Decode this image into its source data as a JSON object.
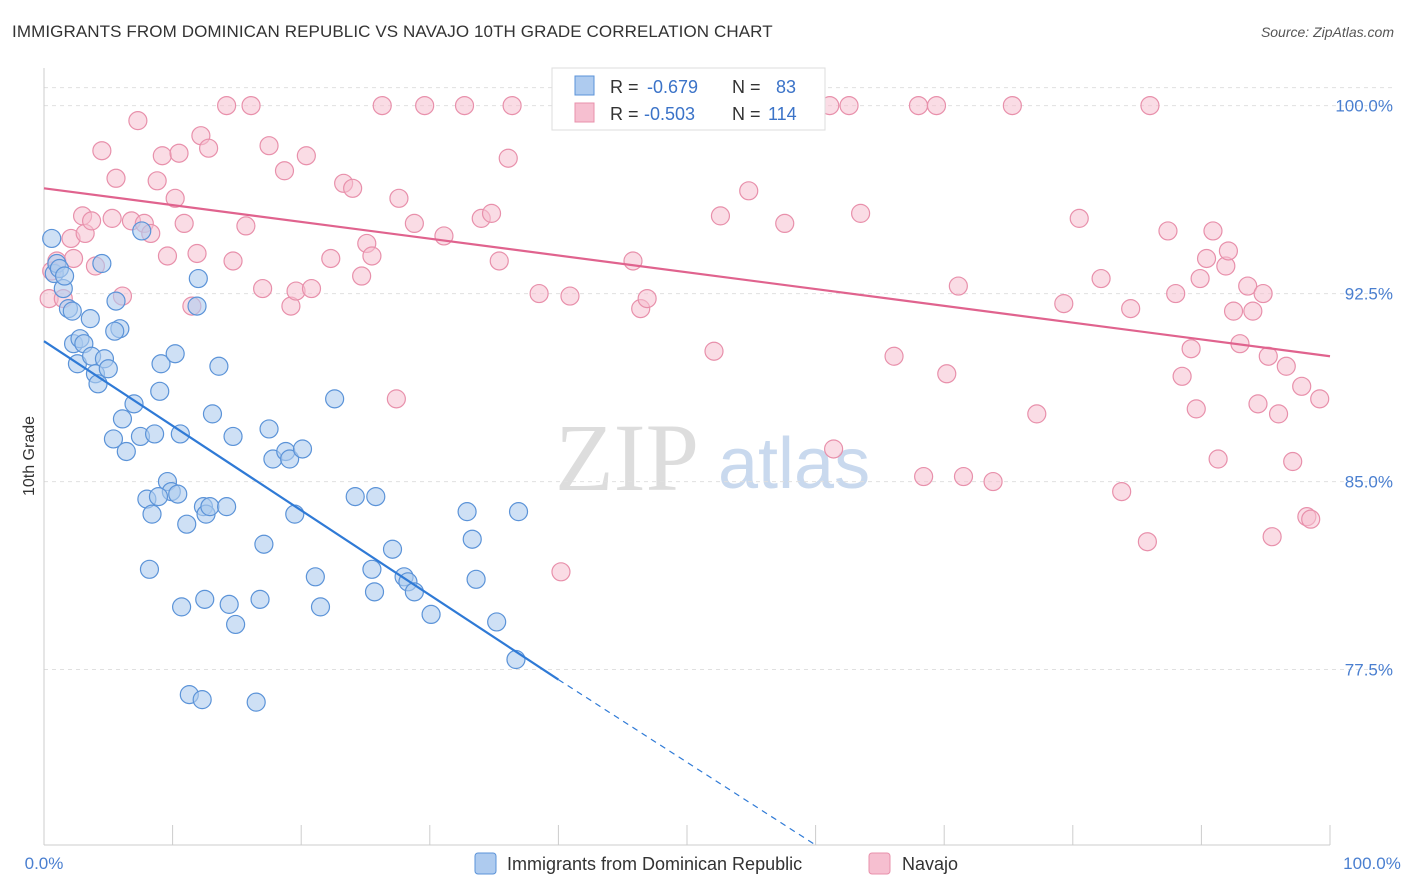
{
  "header": {
    "title": "IMMIGRANTS FROM DOMINICAN REPUBLIC VS NAVAJO 10TH GRADE CORRELATION CHART",
    "source": "Source: ZipAtlas.com"
  },
  "watermark": {
    "zip": "ZIP",
    "atlas": "atlas"
  },
  "colors": {
    "blue_fill": "#aecbef",
    "blue_stroke": "#5b93d8",
    "blue_line": "#2f7ad6",
    "pink_fill": "#f6bfd0",
    "pink_stroke": "#e890ab",
    "pink_line": "#e0638e",
    "grid": "#e0e0e0",
    "tick_text": "#4a7fd0"
  },
  "legend": {
    "r_label": "R =",
    "n_label": "N =",
    "rows": [
      {
        "r": "-0.679",
        "n": "83"
      },
      {
        "r": "-0.503",
        "n": "114"
      }
    ]
  },
  "chart_data": {
    "type": "scatter",
    "title": "IMMIGRANTS FROM DOMINICAN REPUBLIC VS NAVAJO 10TH GRADE CORRELATION CHART",
    "xlabel": "",
    "ylabel": "10th Grade",
    "xlim": [
      0,
      100
    ],
    "ylim": [
      70.5,
      101.5
    ],
    "x_tick_labels": [
      "0.0%",
      "100.0%"
    ],
    "y_ticks": [
      77.5,
      85.0,
      92.5,
      100.0
    ],
    "y_tick_labels": [
      "77.5%",
      "85.0%",
      "92.5%",
      "100.0%"
    ],
    "grid": true,
    "legend_position": "top-center",
    "series": [
      {
        "name": "Immigrants from Dominican Republic",
        "r": -0.679,
        "n": 83,
        "trend": {
          "x0": 0,
          "y0": 90.6,
          "x1": 40,
          "y1": 77.1,
          "dash_x1": 60,
          "dash_y1": 70.5
        },
        "points": [
          [
            0.6,
            94.7
          ],
          [
            0.8,
            93.3
          ],
          [
            1.0,
            93.7
          ],
          [
            1.2,
            93.5
          ],
          [
            1.5,
            92.7
          ],
          [
            1.6,
            93.2
          ],
          [
            1.9,
            91.9
          ],
          [
            2.2,
            91.8
          ],
          [
            2.3,
            90.5
          ],
          [
            2.6,
            89.7
          ],
          [
            2.8,
            90.7
          ],
          [
            3.1,
            90.5
          ],
          [
            3.6,
            91.5
          ],
          [
            3.7,
            90.0
          ],
          [
            4.0,
            89.3
          ],
          [
            4.2,
            88.9
          ],
          [
            4.5,
            93.7
          ],
          [
            4.7,
            89.9
          ],
          [
            5.0,
            89.5
          ],
          [
            5.4,
            86.7
          ],
          [
            5.6,
            92.2
          ],
          [
            5.9,
            91.1
          ],
          [
            6.1,
            87.5
          ],
          [
            6.4,
            86.2
          ],
          [
            7.0,
            88.1
          ],
          [
            7.5,
            86.8
          ],
          [
            7.6,
            95.0
          ],
          [
            8.0,
            84.3
          ],
          [
            8.2,
            81.5
          ],
          [
            8.4,
            83.7
          ],
          [
            8.6,
            86.9
          ],
          [
            9.0,
            88.6
          ],
          [
            9.1,
            89.7
          ],
          [
            9.6,
            85.0
          ],
          [
            9.9,
            84.6
          ],
          [
            10.2,
            90.1
          ],
          [
            10.4,
            84.5
          ],
          [
            10.6,
            86.9
          ],
          [
            10.7,
            80.0
          ],
          [
            11.1,
            83.3
          ],
          [
            11.3,
            76.5
          ],
          [
            11.9,
            92.0
          ],
          [
            12.0,
            93.1
          ],
          [
            12.3,
            76.3
          ],
          [
            12.4,
            84.0
          ],
          [
            12.5,
            80.3
          ],
          [
            12.6,
            83.7
          ],
          [
            12.9,
            84.0
          ],
          [
            13.1,
            87.7
          ],
          [
            13.6,
            89.6
          ],
          [
            14.2,
            84.0
          ],
          [
            14.4,
            80.1
          ],
          [
            14.7,
            86.8
          ],
          [
            14.9,
            79.3
          ],
          [
            16.5,
            76.2
          ],
          [
            16.8,
            80.3
          ],
          [
            17.1,
            82.5
          ],
          [
            17.5,
            87.1
          ],
          [
            17.8,
            85.9
          ],
          [
            18.8,
            86.2
          ],
          [
            19.1,
            85.9
          ],
          [
            19.5,
            83.7
          ],
          [
            20.1,
            86.3
          ],
          [
            21.1,
            81.2
          ],
          [
            21.5,
            80.0
          ],
          [
            22.6,
            88.3
          ],
          [
            24.2,
            84.4
          ],
          [
            25.5,
            81.5
          ],
          [
            25.7,
            80.6
          ],
          [
            25.8,
            84.4
          ],
          [
            27.1,
            82.3
          ],
          [
            28.0,
            81.2
          ],
          [
            28.3,
            81.0
          ],
          [
            28.8,
            80.6
          ],
          [
            30.1,
            79.7
          ],
          [
            32.9,
            83.8
          ],
          [
            33.3,
            82.7
          ],
          [
            33.6,
            81.1
          ],
          [
            35.2,
            79.4
          ],
          [
            36.7,
            77.9
          ],
          [
            36.9,
            83.8
          ],
          [
            5.5,
            91.0
          ],
          [
            8.9,
            84.4
          ]
        ]
      },
      {
        "name": "Navajo",
        "r": -0.503,
        "n": 114,
        "trend": {
          "x0": 0,
          "y0": 96.7,
          "x1": 100,
          "y1": 90.0
        },
        "points": [
          [
            0.4,
            92.3
          ],
          [
            0.6,
            93.4
          ],
          [
            1.0,
            93.8
          ],
          [
            1.5,
            92.3
          ],
          [
            2.1,
            94.7
          ],
          [
            2.3,
            93.9
          ],
          [
            3.0,
            95.6
          ],
          [
            3.2,
            94.9
          ],
          [
            3.7,
            95.4
          ],
          [
            4.0,
            93.6
          ],
          [
            4.5,
            98.2
          ],
          [
            5.3,
            95.5
          ],
          [
            5.6,
            97.1
          ],
          [
            6.1,
            92.4
          ],
          [
            6.8,
            95.4
          ],
          [
            7.3,
            99.4
          ],
          [
            7.8,
            95.3
          ],
          [
            8.3,
            94.9
          ],
          [
            8.8,
            97.0
          ],
          [
            9.2,
            98.0
          ],
          [
            9.6,
            94.0
          ],
          [
            10.2,
            96.3
          ],
          [
            10.5,
            98.1
          ],
          [
            10.9,
            95.3
          ],
          [
            11.5,
            92.0
          ],
          [
            11.9,
            94.1
          ],
          [
            12.2,
            98.8
          ],
          [
            12.8,
            98.3
          ],
          [
            14.2,
            100.0
          ],
          [
            14.7,
            93.8
          ],
          [
            15.7,
            95.2
          ],
          [
            16.1,
            100.0
          ],
          [
            17.0,
            92.7
          ],
          [
            17.5,
            98.4
          ],
          [
            18.7,
            97.4
          ],
          [
            19.2,
            92.0
          ],
          [
            19.6,
            92.6
          ],
          [
            20.4,
            98.0
          ],
          [
            20.8,
            92.7
          ],
          [
            22.3,
            93.9
          ],
          [
            23.3,
            96.9
          ],
          [
            24.0,
            96.7
          ],
          [
            24.7,
            93.2
          ],
          [
            25.1,
            94.5
          ],
          [
            25.5,
            94.0
          ],
          [
            26.3,
            100.0
          ],
          [
            27.4,
            88.3
          ],
          [
            27.6,
            96.3
          ],
          [
            28.8,
            95.3
          ],
          [
            29.6,
            100.0
          ],
          [
            31.1,
            94.8
          ],
          [
            32.7,
            100.0
          ],
          [
            34.0,
            95.5
          ],
          [
            34.8,
            95.7
          ],
          [
            35.4,
            93.8
          ],
          [
            36.1,
            97.9
          ],
          [
            36.4,
            100.0
          ],
          [
            38.5,
            92.5
          ],
          [
            40.2,
            81.4
          ],
          [
            40.9,
            92.4
          ],
          [
            45.8,
            93.8
          ],
          [
            46.4,
            91.9
          ],
          [
            46.9,
            92.3
          ],
          [
            52.1,
            90.2
          ],
          [
            52.6,
            95.6
          ],
          [
            54.8,
            96.6
          ],
          [
            57.6,
            95.3
          ],
          [
            61.1,
            100.0
          ],
          [
            61.4,
            86.3
          ],
          [
            62.6,
            100.0
          ],
          [
            63.5,
            95.7
          ],
          [
            66.1,
            90.0
          ],
          [
            68.0,
            100.0
          ],
          [
            68.4,
            85.2
          ],
          [
            69.4,
            100.0
          ],
          [
            70.2,
            89.3
          ],
          [
            71.1,
            92.8
          ],
          [
            71.5,
            85.2
          ],
          [
            73.8,
            85.0
          ],
          [
            75.3,
            100.0
          ],
          [
            77.2,
            87.7
          ],
          [
            79.3,
            92.1
          ],
          [
            80.5,
            95.5
          ],
          [
            82.2,
            93.1
          ],
          [
            83.8,
            84.6
          ],
          [
            84.5,
            91.9
          ],
          [
            85.8,
            82.6
          ],
          [
            86.0,
            100.0
          ],
          [
            87.4,
            95.0
          ],
          [
            88.0,
            92.5
          ],
          [
            88.5,
            89.2
          ],
          [
            89.2,
            90.3
          ],
          [
            89.6,
            87.9
          ],
          [
            89.9,
            93.1
          ],
          [
            90.4,
            93.9
          ],
          [
            90.9,
            95.0
          ],
          [
            91.3,
            85.9
          ],
          [
            91.9,
            93.6
          ],
          [
            92.1,
            94.2
          ],
          [
            92.5,
            91.8
          ],
          [
            93.0,
            90.5
          ],
          [
            93.6,
            92.8
          ],
          [
            94.0,
            91.8
          ],
          [
            94.4,
            88.1
          ],
          [
            94.8,
            92.5
          ],
          [
            95.2,
            90.0
          ],
          [
            95.5,
            82.8
          ],
          [
            96.0,
            87.7
          ],
          [
            96.6,
            89.6
          ],
          [
            97.1,
            85.8
          ],
          [
            97.8,
            88.8
          ],
          [
            98.2,
            83.6
          ],
          [
            98.5,
            83.5
          ],
          [
            99.2,
            88.3
          ]
        ]
      }
    ]
  },
  "bottom_legend": [
    {
      "label": "Immigrants from Dominican Republic"
    },
    {
      "label": "Navajo"
    }
  ]
}
